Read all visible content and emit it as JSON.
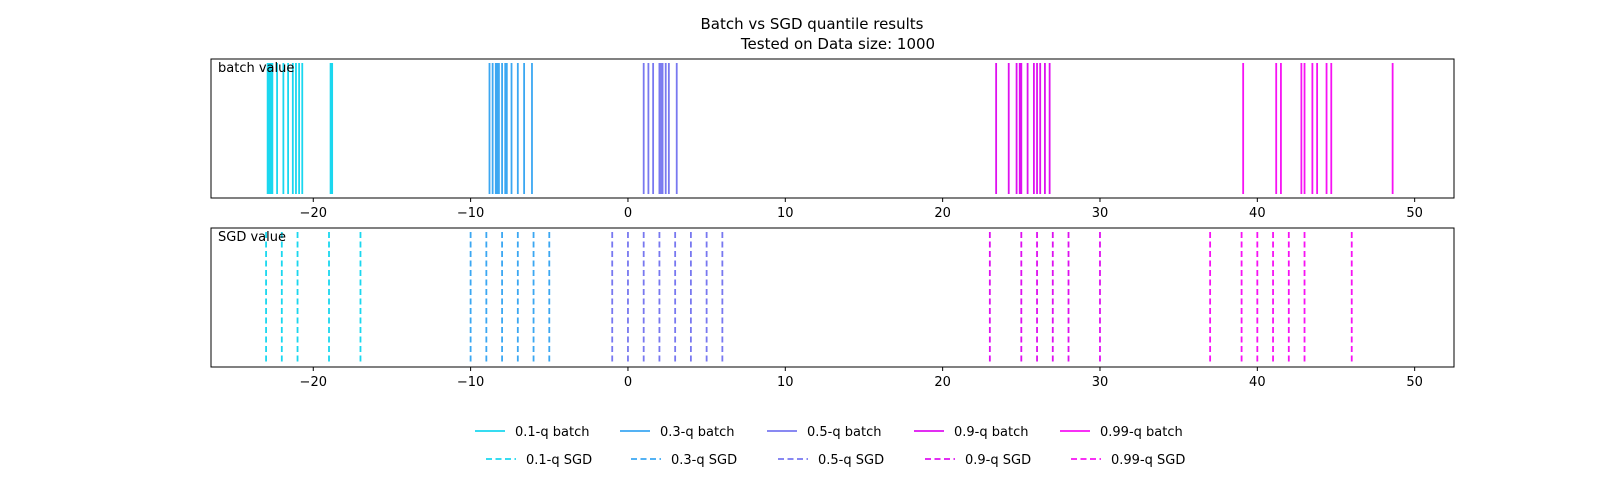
{
  "chart_data": {
    "type": "event",
    "title_line1": "Batch vs SGD quantile results",
    "title_line2": "Tested on Data size: 1000",
    "xlim": [
      -26.5,
      52.5
    ],
    "xticks": [
      -20,
      -10,
      0,
      10,
      20,
      30,
      40,
      50
    ],
    "xtick_labels": [
      "−20",
      "−10",
      "0",
      "10",
      "20",
      "30",
      "40",
      "50"
    ],
    "grid": false,
    "legend_position": "bottom-center",
    "panels": [
      {
        "label": "batch value",
        "line_style": "solid",
        "series": [
          {
            "name": "0.1-q batch",
            "color": "#1ad7ef",
            "values": [
              -22.9,
              -22.8,
              -22.7,
              -22.6,
              -22.3,
              -21.9,
              -21.6,
              -21.3,
              -21.1,
              -20.9,
              -20.7,
              -18.9,
              -18.8
            ]
          },
          {
            "name": "0.3-q batch",
            "color": "#3ba7f2",
            "values": [
              -8.8,
              -8.6,
              -8.4,
              -8.3,
              -8.2,
              -8.0,
              -7.8,
              -7.7,
              -7.4,
              -7.0,
              -6.6,
              -6.1
            ]
          },
          {
            "name": "0.5-q batch",
            "color": "#7878f0",
            "values": [
              1.0,
              1.3,
              1.6,
              2.0,
              2.1,
              2.2,
              2.4,
              2.6,
              3.1
            ]
          },
          {
            "name": "0.9-q batch",
            "color": "#de10f0",
            "values": [
              23.4,
              24.2,
              24.7,
              24.9,
              25.0,
              25.4,
              25.8,
              26.0,
              26.2,
              26.5,
              26.8
            ]
          },
          {
            "name": "0.99-q batch",
            "color": "#f712f4",
            "values": [
              39.1,
              41.2,
              41.5,
              42.8,
              43.0,
              43.5,
              43.8,
              44.4,
              44.7,
              48.6
            ]
          }
        ]
      },
      {
        "label": "SGD value",
        "line_style": "dashed",
        "series": [
          {
            "name": "0.1-q SGD",
            "color": "#1ad7ef",
            "values": [
              -23,
              -22,
              -21,
              -19,
              -17
            ]
          },
          {
            "name": "0.3-q SGD",
            "color": "#3ba7f2",
            "values": [
              -10,
              -9,
              -8,
              -7,
              -6,
              -5
            ]
          },
          {
            "name": "0.5-q SGD",
            "color": "#7878f0",
            "values": [
              -1,
              0,
              1,
              2,
              3,
              4,
              5,
              6
            ]
          },
          {
            "name": "0.9-q SGD",
            "color": "#de10f0",
            "values": [
              23,
              25,
              26,
              27,
              28,
              30
            ]
          },
          {
            "name": "0.99-q SGD",
            "color": "#f712f4",
            "values": [
              37,
              39,
              40,
              41,
              42,
              43,
              46
            ]
          }
        ]
      }
    ]
  }
}
